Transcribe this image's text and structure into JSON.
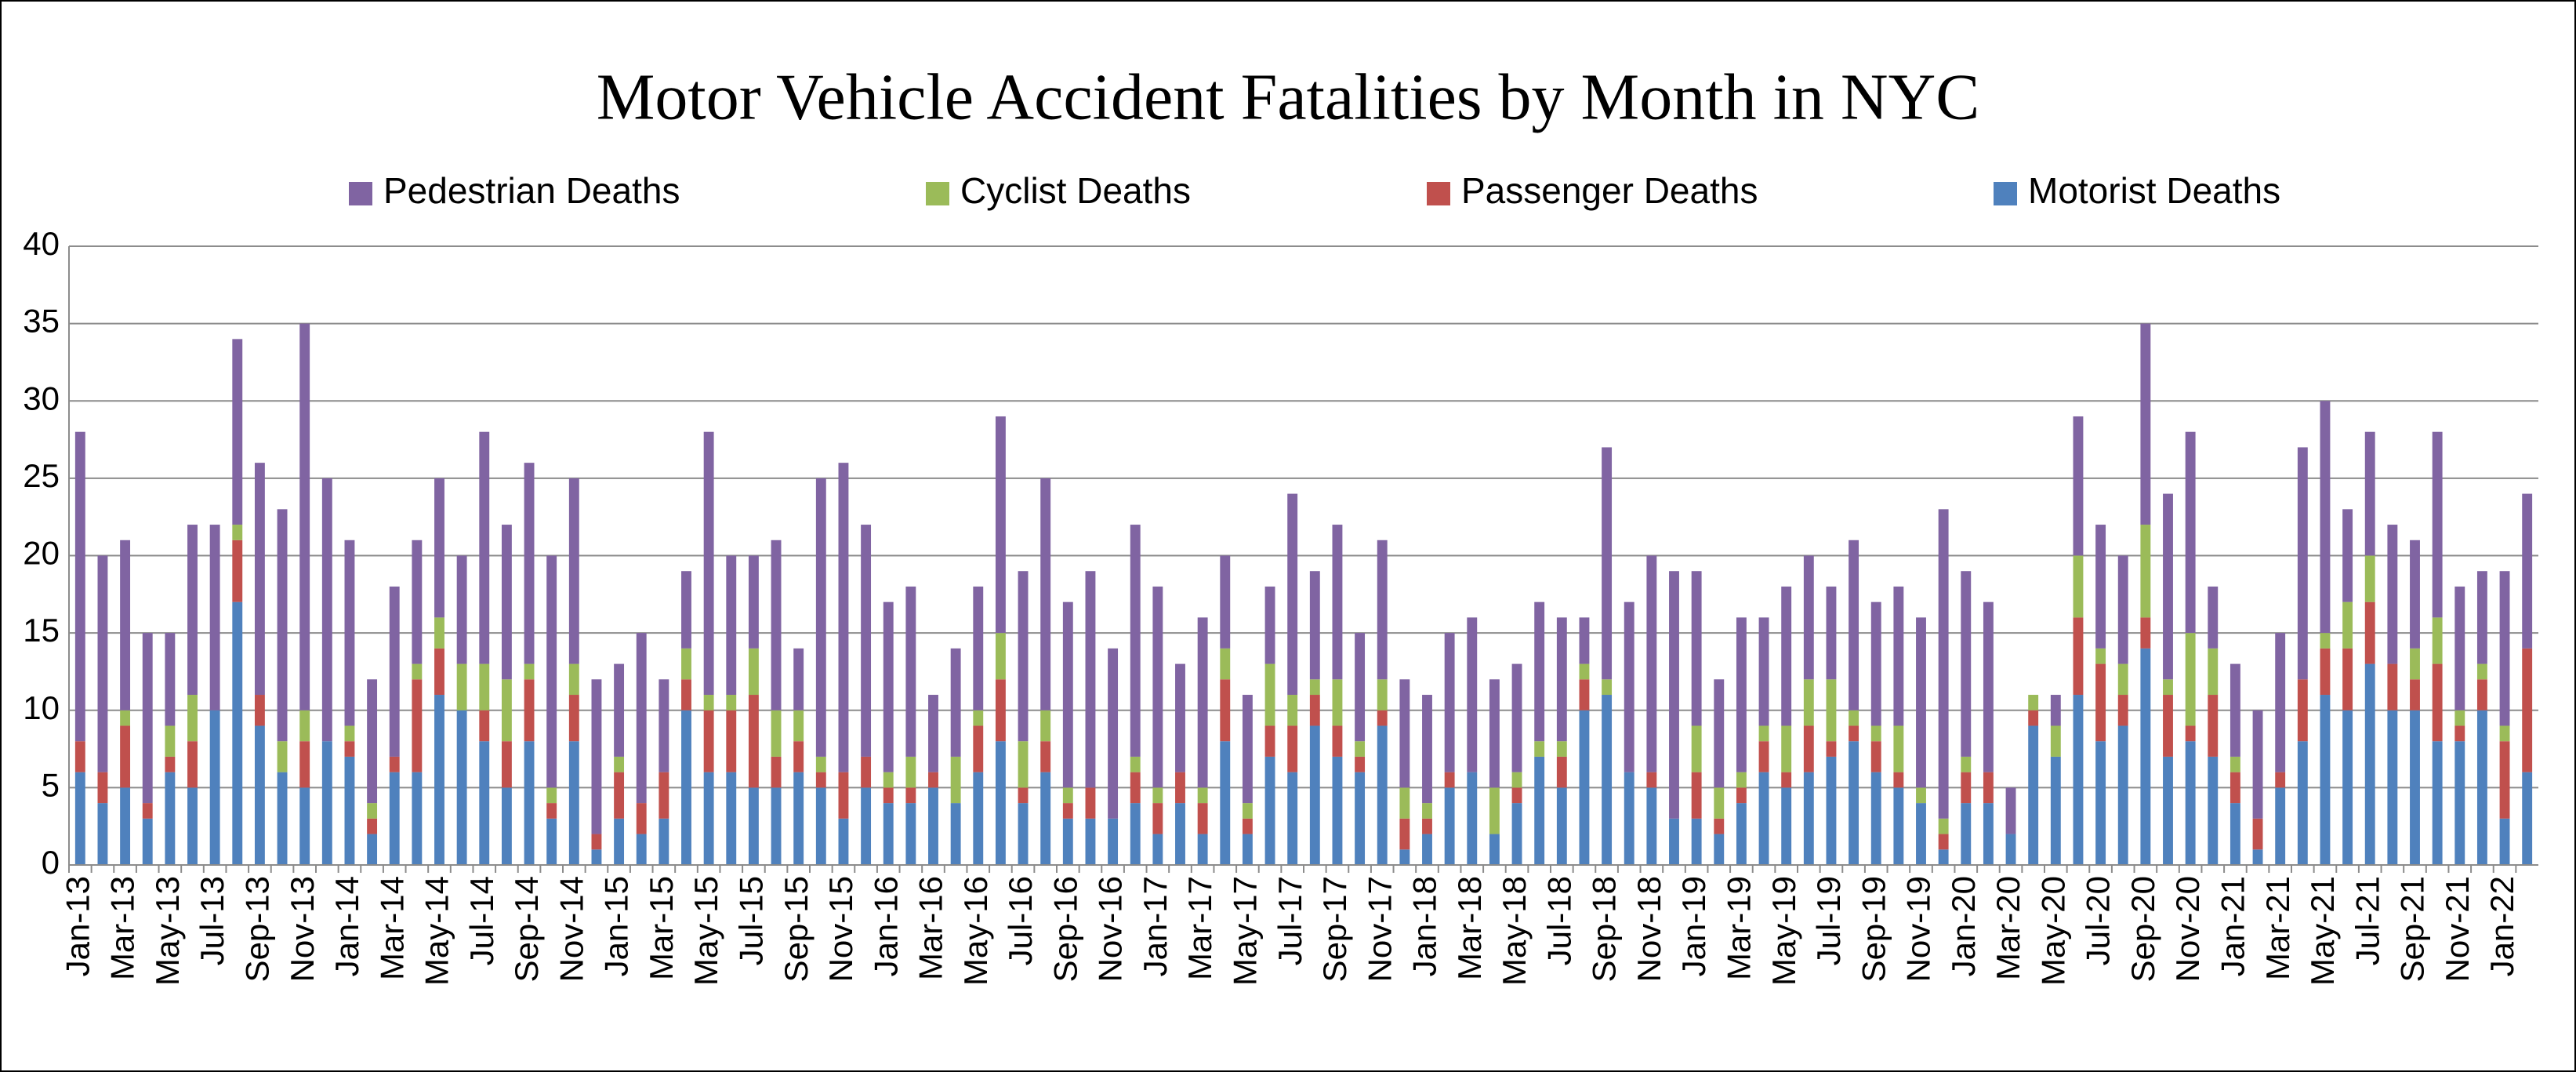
{
  "chart_data": {
    "type": "stacked_bar",
    "title": "Motor Vehicle Accident Fatalities by Month in NYC",
    "categories": [
      "Jan-13",
      null,
      "Mar-13",
      null,
      "May-13",
      null,
      "Jul-13",
      null,
      "Sep-13",
      null,
      "Nov-13",
      null,
      "Jan-14",
      null,
      "Mar-14",
      null,
      "May-14",
      null,
      "Jul-14",
      null,
      "Sep-14",
      null,
      "Nov-14",
      null,
      "Jan-15",
      null,
      "Mar-15",
      null,
      "May-15",
      null,
      "Jul-15",
      null,
      "Sep-15",
      null,
      "Nov-15",
      null,
      "Jan-16",
      null,
      "Mar-16",
      null,
      "May-16",
      null,
      "Jul-16",
      null,
      "Sep-16",
      null,
      "Nov-16",
      null,
      "Jan-17",
      null,
      "Mar-17",
      null,
      "May-17",
      null,
      "Jul-17",
      null,
      "Sep-17",
      null,
      "Nov-17",
      null,
      "Jan-18",
      null,
      "Mar-18",
      null,
      "May-18",
      null,
      "Jul-18",
      null,
      "Sep-18",
      null,
      "Nov-18",
      null,
      "Jan-19",
      null,
      "Mar-19",
      null,
      "May-19",
      null,
      "Jul-19",
      null,
      "Sep-19",
      null,
      "Nov-19",
      null,
      "Jan-20",
      null,
      "Mar-20",
      null,
      "May-20",
      null,
      "Jul-20",
      null,
      "Sep-20",
      null,
      "Nov-20",
      null,
      "Jan-21",
      null,
      "Mar-21",
      null,
      "May-21",
      null,
      "Jul-21",
      null,
      "Sep-21",
      null,
      "Nov-21",
      null,
      "Jan-22",
      null
    ],
    "series": [
      {
        "name": "Motorist Deaths",
        "color": "#4f81bd",
        "values": [
          6,
          4,
          5,
          3,
          6,
          5,
          10,
          17,
          9,
          6,
          5,
          8,
          7,
          2,
          6,
          6,
          11,
          10,
          8,
          5,
          8,
          3,
          8,
          1,
          3,
          2,
          3,
          10,
          6,
          6,
          5,
          5,
          6,
          5,
          3,
          5,
          4,
          4,
          5,
          4,
          6,
          8,
          4,
          6,
          3,
          3,
          3,
          4,
          2,
          4,
          2,
          8,
          2,
          7,
          6,
          9,
          7,
          6,
          9,
          1,
          2,
          5,
          6,
          2,
          4,
          7,
          5,
          10,
          11,
          6,
          5,
          3,
          3,
          2,
          4,
          6,
          5,
          6,
          7,
          8,
          6,
          5,
          4,
          1,
          4,
          4,
          2,
          9,
          7,
          11,
          8,
          9,
          14,
          7,
          8,
          7,
          4,
          1,
          5,
          8,
          11,
          10,
          13,
          10,
          10,
          8,
          8,
          10,
          3,
          6
        ]
      },
      {
        "name": "Passenger Deaths",
        "color": "#c0504d",
        "values": [
          2,
          2,
          4,
          1,
          1,
          3,
          0,
          4,
          2,
          0,
          3,
          0,
          1,
          1,
          1,
          6,
          3,
          0,
          2,
          3,
          4,
          1,
          3,
          1,
          3,
          2,
          3,
          2,
          4,
          4,
          6,
          2,
          2,
          1,
          3,
          2,
          1,
          1,
          1,
          0,
          3,
          4,
          1,
          2,
          1,
          2,
          0,
          2,
          2,
          2,
          2,
          4,
          1,
          2,
          3,
          2,
          2,
          1,
          1,
          2,
          1,
          1,
          0,
          0,
          1,
          0,
          2,
          2,
          0,
          0,
          1,
          0,
          3,
          1,
          1,
          2,
          1,
          3,
          1,
          1,
          2,
          1,
          0,
          1,
          2,
          2,
          0,
          1,
          0,
          5,
          5,
          2,
          2,
          4,
          1,
          4,
          2,
          2,
          1,
          4,
          3,
          4,
          4,
          3,
          2,
          5,
          1,
          2,
          5,
          8
        ]
      },
      {
        "name": "Cyclist Deaths",
        "color": "#9bbb59",
        "values": [
          0,
          0,
          1,
          0,
          2,
          3,
          0,
          1,
          0,
          2,
          2,
          0,
          1,
          1,
          0,
          1,
          2,
          3,
          3,
          4,
          1,
          1,
          2,
          0,
          1,
          0,
          0,
          2,
          1,
          1,
          3,
          3,
          2,
          1,
          0,
          0,
          1,
          2,
          0,
          3,
          1,
          3,
          3,
          2,
          1,
          0,
          0,
          1,
          1,
          0,
          1,
          2,
          1,
          4,
          2,
          1,
          3,
          1,
          2,
          2,
          1,
          0,
          0,
          3,
          1,
          1,
          1,
          1,
          1,
          0,
          0,
          0,
          3,
          2,
          1,
          1,
          3,
          3,
          4,
          1,
          1,
          3,
          1,
          1,
          1,
          0,
          0,
          1,
          2,
          4,
          1,
          2,
          6,
          1,
          6,
          3,
          1,
          0,
          0,
          0,
          1,
          3,
          3,
          0,
          2,
          3,
          1,
          1,
          1,
          0
        ]
      },
      {
        "name": "Pedestrian Deaths",
        "color": "#8064a2",
        "values": [
          20,
          14,
          11,
          11,
          6,
          11,
          12,
          12,
          15,
          15,
          25,
          17,
          12,
          8,
          11,
          8,
          9,
          7,
          15,
          10,
          13,
          15,
          12,
          10,
          6,
          11,
          6,
          5,
          17,
          9,
          6,
          11,
          4,
          18,
          20,
          15,
          11,
          11,
          5,
          7,
          8,
          14,
          11,
          15,
          12,
          14,
          11,
          15,
          13,
          7,
          11,
          6,
          7,
          5,
          13,
          7,
          10,
          7,
          9,
          7,
          7,
          9,
          10,
          7,
          7,
          9,
          8,
          3,
          15,
          11,
          14,
          16,
          10,
          7,
          10,
          7,
          9,
          8,
          6,
          11,
          8,
          9,
          11,
          20,
          12,
          11,
          3,
          0,
          2,
          9,
          8,
          7,
          13,
          12,
          13,
          4,
          6,
          7,
          9,
          15,
          15,
          6,
          8,
          9,
          7,
          12,
          8,
          6,
          10,
          10
        ]
      }
    ],
    "ylim": [
      0,
      40
    ],
    "yticks": [
      0,
      5,
      10,
      15,
      20,
      25,
      30,
      35,
      40
    ],
    "grid": true,
    "legend": "top"
  }
}
